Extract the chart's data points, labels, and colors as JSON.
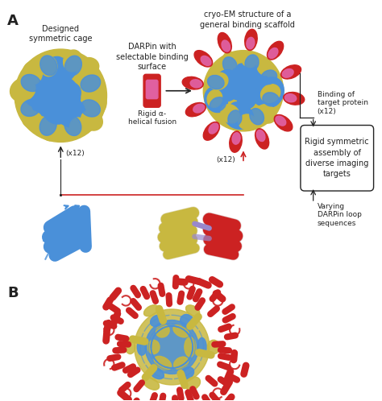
{
  "fig_width": 4.74,
  "fig_height": 4.98,
  "dpi": 100,
  "bg_color": "#ffffff",
  "label_A": "A",
  "label_B": "B",
  "title_cage": "Designed\nsymmetric cage",
  "title_darpin": "DARPin with\nselectable binding\nsurface",
  "title_cryo": "cryo-EM structure of a\ngeneral binding scaffold",
  "label_rigid": "Rigid α-\nhelical fusion",
  "label_x12_left": "(x12)",
  "label_x12_right": "(x12)",
  "box_text": "Rigid symmetric\nassembly of\ndiverse imaging\ntargets",
  "arrow_text1": "Binding of\ntarget protein\n(x12)",
  "arrow_text2": "Varying\nDARPin loop\nsequences",
  "color_blue": "#4a90d9",
  "color_yellow": "#c8b840",
  "color_red": "#cc2222",
  "color_pink": "#e060a0",
  "color_dark": "#222222",
  "font_size_label": 13,
  "font_size_title": 7.0,
  "font_size_annot": 6.5,
  "font_size_box": 7.0
}
